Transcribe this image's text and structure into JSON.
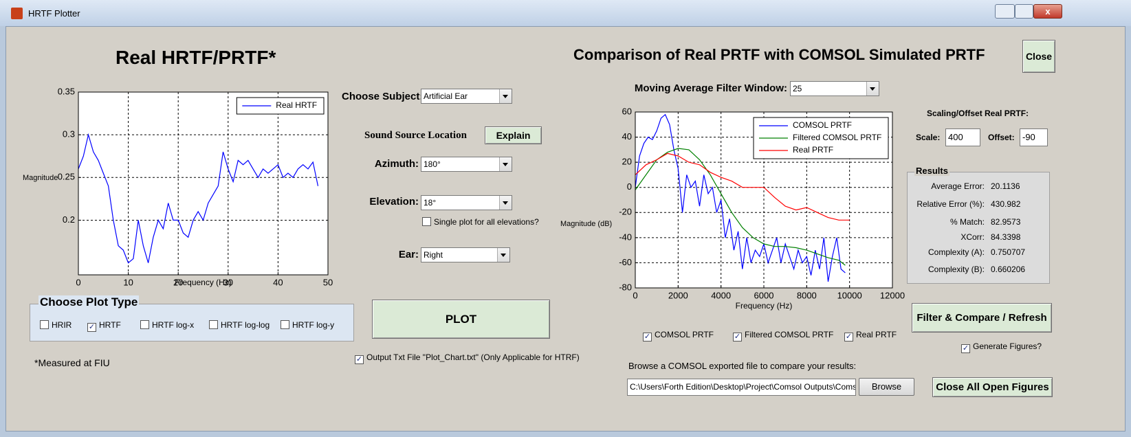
{
  "window": {
    "title": "HRTF Plotter"
  },
  "left_panel": {
    "title": "Real HRTF/PRTF*",
    "subject_label": "Choose Subject:",
    "subject": "Artificial Ear",
    "location_label": "Sound Source Location",
    "explain_button": "Explain",
    "azimuth_label": "Azimuth:",
    "azimuth": "180°",
    "elevation_label": "Elevation:",
    "elevation": "18°",
    "single_plot": {
      "label": "Single plot for all elevations?",
      "checked": false
    },
    "ear_label": "Ear:",
    "ear": "Right",
    "plot_type": {
      "title": "Choose Plot Type",
      "options": [
        {
          "label": "HRIR",
          "checked": false
        },
        {
          "label": "HRTF",
          "checked": true
        },
        {
          "label": "HRTF log-x",
          "checked": false
        },
        {
          "label": "HRTF log-log",
          "checked": false
        },
        {
          "label": "HRTF log-y",
          "checked": false
        }
      ]
    },
    "note": "*Measured at FIU",
    "plot_button": "PLOT",
    "output_txt": {
      "label": "Output Txt File \"Plot_Chart.txt\" (Only Applicable for HTRF)",
      "checked": true
    }
  },
  "right_panel": {
    "title": "Comparison of Real PRTF with COMSOL Simulated PRTF",
    "close_button": "Close",
    "filter_label": "Moving Average Filter Window:",
    "filter_window": "25",
    "scaling_title": "Scaling/Offset Real PRTF:",
    "scale_label": "Scale:",
    "scale": "400",
    "offset_label": "Offset:",
    "offset": "-90",
    "results": {
      "title": "Results",
      "rows": [
        {
          "label": "Average Error:",
          "value": "20.1136"
        },
        {
          "label": "Relative Error (%):",
          "value": "430.982"
        },
        {
          "label": "% Match:",
          "value": "82.9573"
        },
        {
          "label": "XCorr:",
          "value": "84.3398"
        },
        {
          "label": "Complexity (A):",
          "value": "0.750707"
        },
        {
          "label": "Complexity (B):",
          "value": "0.660206"
        }
      ]
    },
    "refresh_button": "Filter & Compare / Refresh",
    "generate_figures": {
      "label": "Generate Figures?",
      "checked": true
    },
    "show": [
      {
        "label": "COMSOL PRTF",
        "checked": true
      },
      {
        "label": "Filtered COMSOL PRTF",
        "checked": true
      },
      {
        "label": "Real PRTF",
        "checked": true
      }
    ],
    "browse_label": "Browse a COMSOL exported file to compare your results:",
    "file_path": "C:\\Users\\Forth Edition\\Desktop\\Project\\Comsol Outputs\\Comso",
    "browse_button": "Browse",
    "close_all_button": "Close All Open Figures"
  },
  "chart_data": [
    {
      "type": "line",
      "xlabel": "Frequency (Hz)",
      "ylabel": "Magnitude",
      "xlim": [
        0,
        50
      ],
      "ylim": [
        0.136,
        0.35
      ],
      "xticks": [
        0,
        10,
        20,
        30,
        40,
        50
      ],
      "yticks": [
        0.2,
        0.25,
        0.3,
        0.35
      ],
      "grid": true,
      "legend": "upper right",
      "series": [
        {
          "name": "Real HRTF",
          "color": "#0000ff",
          "x": [
            0,
            1,
            2,
            3,
            4,
            5,
            6,
            7,
            8,
            9,
            10,
            11,
            12,
            13,
            14,
            15,
            16,
            17,
            18,
            19,
            20,
            21,
            22,
            23,
            24,
            25,
            26,
            27,
            28,
            29,
            30,
            31,
            32,
            33,
            34,
            35,
            36,
            37,
            38,
            39,
            40,
            41,
            42,
            43,
            44,
            45,
            46,
            47,
            48
          ],
          "values": [
            0.26,
            0.275,
            0.3,
            0.28,
            0.27,
            0.255,
            0.24,
            0.2,
            0.17,
            0.165,
            0.15,
            0.155,
            0.2,
            0.17,
            0.15,
            0.18,
            0.2,
            0.19,
            0.22,
            0.2,
            0.2,
            0.185,
            0.18,
            0.2,
            0.21,
            0.2,
            0.22,
            0.23,
            0.24,
            0.28,
            0.26,
            0.245,
            0.27,
            0.265,
            0.27,
            0.26,
            0.25,
            0.26,
            0.255,
            0.26,
            0.265,
            0.25,
            0.255,
            0.25,
            0.26,
            0.265,
            0.26,
            0.268,
            0.24
          ]
        }
      ]
    },
    {
      "type": "line",
      "xlabel": "Frequency (Hz)",
      "ylabel": "Magnitude (dB)",
      "xlim": [
        0,
        12000
      ],
      "ylim": [
        -80,
        60
      ],
      "xticks": [
        0,
        2000,
        4000,
        6000,
        8000,
        10000,
        12000
      ],
      "yticks": [
        -80,
        -60,
        -40,
        -20,
        0,
        20,
        40,
        60
      ],
      "grid": true,
      "legend": "upper right",
      "series": [
        {
          "name": "COMSOL PRTF",
          "color": "#0000ff",
          "x": [
            0,
            200,
            400,
            600,
            800,
            1000,
            1200,
            1400,
            1600,
            1800,
            2000,
            2200,
            2400,
            2600,
            2800,
            3000,
            3200,
            3400,
            3600,
            3800,
            4000,
            4200,
            4400,
            4600,
            4800,
            5000,
            5200,
            5400,
            5600,
            5800,
            6000,
            6200,
            6400,
            6600,
            6800,
            7000,
            7200,
            7400,
            7600,
            7800,
            8000,
            8200,
            8400,
            8600,
            8800,
            9000,
            9200,
            9400,
            9600,
            9800
          ],
          "values": [
            0,
            25,
            35,
            40,
            38,
            45,
            55,
            58,
            50,
            30,
            15,
            -20,
            10,
            0,
            5,
            -15,
            10,
            -5,
            0,
            -20,
            -10,
            -40,
            -25,
            -50,
            -35,
            -65,
            -40,
            -60,
            -50,
            -55,
            -45,
            -60,
            -50,
            -40,
            -60,
            -45,
            -55,
            -65,
            -50,
            -60,
            -55,
            -70,
            -50,
            -65,
            -40,
            -75,
            -55,
            -40,
            -65,
            -68
          ]
        },
        {
          "name": "Filtered COMSOL PRTF",
          "color": "#008000",
          "x": [
            0,
            500,
            1000,
            1500,
            2000,
            2500,
            3000,
            3500,
            4000,
            4500,
            5000,
            5500,
            6000,
            6500,
            7000,
            7500,
            8000,
            8500,
            9000,
            9500,
            9800
          ],
          "values": [
            -2,
            10,
            22,
            28,
            31,
            30,
            22,
            10,
            -5,
            -20,
            -32,
            -40,
            -45,
            -47,
            -47,
            -48,
            -50,
            -53,
            -56,
            -58,
            -62
          ]
        },
        {
          "name": "Real PRTF",
          "color": "#ff0000",
          "x": [
            0,
            500,
            1000,
            1500,
            2000,
            2500,
            3000,
            3500,
            4000,
            4500,
            5000,
            5500,
            6000,
            6500,
            7000,
            7500,
            8000,
            8500,
            9000,
            9500,
            10000
          ],
          "values": [
            10,
            18,
            22,
            27,
            25,
            20,
            18,
            12,
            8,
            5,
            0,
            0,
            0,
            -8,
            -15,
            -18,
            -16,
            -20,
            -24,
            -26,
            -26
          ]
        }
      ]
    }
  ]
}
